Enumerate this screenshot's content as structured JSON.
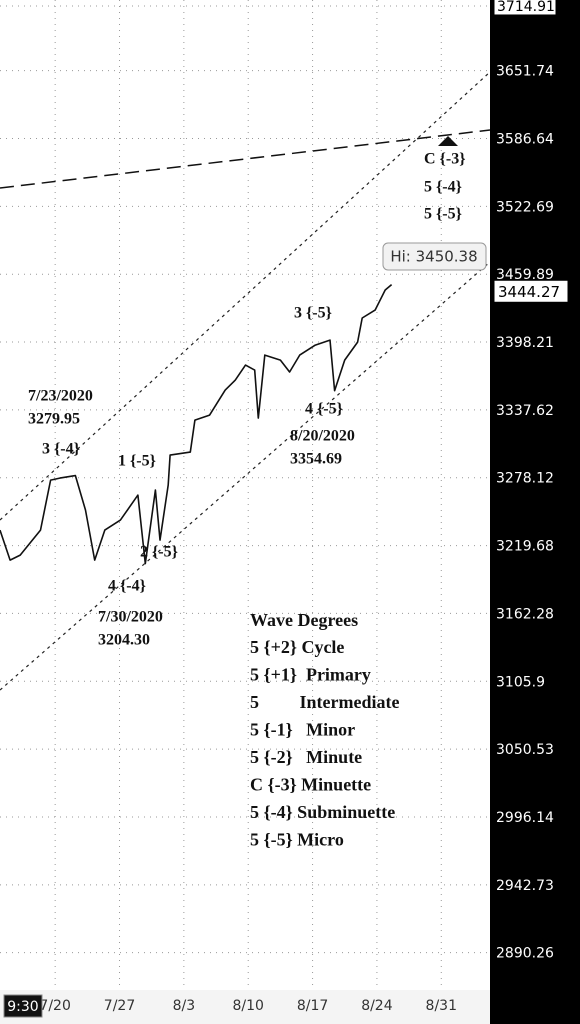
{
  "chart_data": {
    "type": "line",
    "x": [
      -6.0,
      -4.9,
      -3.8,
      -1.6,
      -0.5,
      0.5,
      2.2,
      3.3,
      4.3,
      5.4,
      7.1,
      9.0,
      9.8,
      10.9,
      11.4,
      12.3,
      12.5,
      14.7,
      15.2,
      16.8,
      18.5,
      19.6,
      20.7,
      21.7,
      22.1,
      22.8,
      24.5,
      25.5,
      26.6,
      28.3,
      29.9,
      30.4,
      31.5,
      32.9,
      33.4,
      34.8,
      35.9,
      36.6
    ],
    "series": [
      {
        "color": "#111111",
        "values": [
          3232.9,
          3207.3,
          3211.6,
          3232.9,
          3276.1,
          3277.8,
          3279.95,
          3250.1,
          3207.3,
          3232.9,
          3241.5,
          3263.1,
          3204.3,
          3267.4,
          3224.4,
          3271.8,
          3297.9,
          3300.5,
          3328.6,
          3333.0,
          3355.2,
          3364.1,
          3377.5,
          3373.0,
          3330.4,
          3386.5,
          3382.0,
          3371.3,
          3386.5,
          3395.5,
          3400.0,
          3354.69,
          3382.0,
          3398.2,
          3419.9,
          3427.1,
          3445.4,
          3450.38
        ]
      }
    ],
    "xlim": [
      -6.0,
      47.3
    ],
    "xticks": [
      {
        "value": 0,
        "label": "7/20"
      },
      {
        "value": 7,
        "label": "7/27"
      },
      {
        "value": 14,
        "label": "8/3"
      },
      {
        "value": 21,
        "label": "8/10"
      },
      {
        "value": 28,
        "label": "8/17"
      },
      {
        "value": 35,
        "label": "8/24"
      },
      {
        "value": 42,
        "label": "8/31"
      }
    ],
    "ylim": [
      2861.8,
      3720.8
    ],
    "yticks": [
      3714.91,
      3651.74,
      3586.64,
      3522.69,
      3459.89,
      3398.21,
      3337.62,
      3278.12,
      3219.68,
      3162.28,
      3105.9,
      3050.53,
      2996.14,
      2942.73,
      2890.26
    ],
    "log_scale": true,
    "grid": true,
    "last_price": 3444.27,
    "high_label": "Hi: 3450.38",
    "cursor_label": "9:30",
    "annotations": [
      "7/23/2020",
      "3279.95",
      "3 {-4}",
      "1 {-5}",
      "2 {-5}",
      "4 {-4}",
      "7/30/2020",
      "3204.30",
      "3 {-5}",
      "4 {-5}",
      "8/20/2020",
      "3354.69",
      "C {-3}",
      "5 {-4}",
      "5 {-5}"
    ],
    "legend_title": "Wave Degrees",
    "legend_rows": [
      "5 {+2} Cycle",
      "5 {+1}  Primary",
      "5         Intermediate",
      "5 {-1}   Minor",
      "5 {-2}   Minute",
      "C {-3} Minuette",
      "5 {-4} Subminuette",
      "5 {-5} Micro"
    ]
  }
}
